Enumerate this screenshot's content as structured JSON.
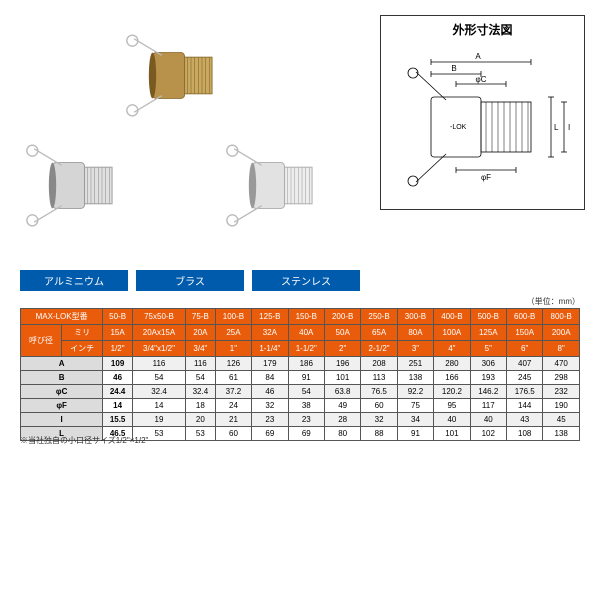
{
  "diagram_title": "外形寸法図",
  "unit_note": "（単位：mm）",
  "materials": [
    "アルミニウム",
    "ブラス",
    "ステンレス"
  ],
  "footnote": "※当社独自の小口径サイズ1/2\"×1/2\"",
  "header": {
    "model_label": "MAX-LOK型番",
    "size_label": "呼び径",
    "mm_label": "ミリ",
    "inch_label": "インチ",
    "models": [
      "50-B",
      "75x50-B",
      "75-B",
      "100-B",
      "125-B",
      "150-B",
      "200-B",
      "250-B",
      "300-B",
      "400-B",
      "500-B",
      "600-B",
      "800-B"
    ],
    "mm_sizes": [
      "15A",
      "20Ax15A",
      "20A",
      "25A",
      "32A",
      "40A",
      "50A",
      "65A",
      "80A",
      "100A",
      "125A",
      "150A",
      "200A"
    ],
    "inch_sizes": [
      "1/2\"",
      "3/4\"x1/2\"",
      "3/4\"",
      "1\"",
      "1-1/4\"",
      "1-1/2\"",
      "2\"",
      "2-1/2\"",
      "3\"",
      "4\"",
      "5\"",
      "6\"",
      "8\""
    ]
  },
  "rows": [
    {
      "label": "A",
      "vals": [
        "109",
        "116",
        "116",
        "126",
        "179",
        "186",
        "196",
        "208",
        "251",
        "280",
        "306",
        "407",
        "470"
      ]
    },
    {
      "label": "B",
      "vals": [
        "46",
        "54",
        "54",
        "61",
        "84",
        "91",
        "101",
        "113",
        "138",
        "166",
        "193",
        "245",
        "298"
      ]
    },
    {
      "label": "φC",
      "vals": [
        "24.4",
        "32.4",
        "32.4",
        "37.2",
        "46",
        "54",
        "63.8",
        "76.5",
        "92.2",
        "120.2",
        "146.2",
        "176.5",
        "232"
      ]
    },
    {
      "label": "φF",
      "vals": [
        "14",
        "14",
        "18",
        "24",
        "32",
        "38",
        "49",
        "60",
        "75",
        "95",
        "117",
        "144",
        "190"
      ]
    },
    {
      "label": "I",
      "vals": [
        "15.5",
        "19",
        "20",
        "21",
        "23",
        "23",
        "28",
        "32",
        "34",
        "40",
        "40",
        "43",
        "45"
      ]
    },
    {
      "label": "L",
      "vals": [
        "46.5",
        "53",
        "53",
        "60",
        "69",
        "69",
        "80",
        "88",
        "91",
        "101",
        "102",
        "108",
        "138"
      ]
    }
  ],
  "colors": {
    "header_bg": "#e85c0c",
    "label_bg": "#005bac",
    "row_alt_bg": "#f0f0f0",
    "row_head_bg": "#dcdcdc"
  },
  "diagram_dims": [
    "A",
    "B",
    "φC",
    "φF",
    "I",
    "L",
    "-LOK"
  ]
}
